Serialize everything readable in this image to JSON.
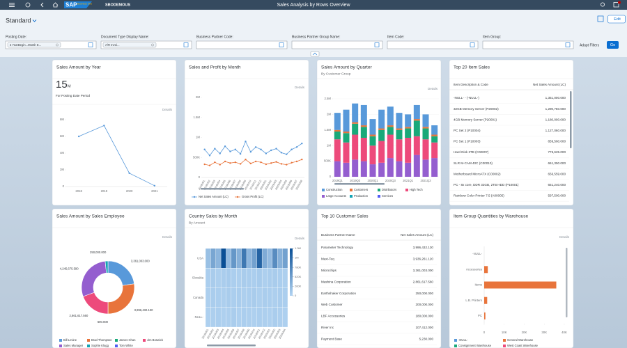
{
  "shell": {
    "logo": "SAP",
    "logo_sub": "Business One",
    "company": "SBODEMOUS",
    "title": "Sales Analysis by Rows Overview"
  },
  "variant": "Standard",
  "actions": {
    "edit": "Edit",
    "adapt": "Adapt Filters",
    "go": "Go"
  },
  "filters": [
    {
      "label": "Posting Date:",
      "value": "3 YearBegin...Month E..."
    },
    {
      "label": "Document Type Display Name:",
      "value": "A/R Invoi..."
    },
    {
      "label": "Business Partner Code:"
    },
    {
      "label": "Business Partner Group Name:"
    },
    {
      "label": "Item Code:"
    },
    {
      "label": "Item Group:"
    }
  ],
  "chart_data": [
    {
      "type": "line",
      "title": "Sales Amount by Year",
      "kpi": 15,
      "kpi_unit": "M",
      "kpi_caption": "For Posting Date Period",
      "details": "Details",
      "categories": [
        "2018",
        "2019",
        "2020",
        "2021"
      ],
      "values": [
        6000000,
        7300000,
        1600000,
        100000
      ],
      "color": "#5899da",
      "markers": true,
      "ylim": [
        0,
        8000000
      ],
      "yticks": [
        0,
        {
          "value": 2000000,
          "label": "2M"
        },
        {
          "value": 4000000,
          "label": "4M"
        },
        {
          "value": 6000000,
          "label": "6M"
        },
        {
          "value": 8000000,
          "label": "8M"
        }
      ]
    },
    {
      "type": "line",
      "title": "Sales and Profit by Month",
      "details": "Details",
      "categories": [
        "2019M01",
        "2019M02",
        "2019M03",
        "2019M04",
        "2019M05",
        "2019M06",
        "2019M07",
        "2019M08",
        "2019M09",
        "2019M10",
        "2019M11",
        "2019M12",
        "2020M01",
        "2020M02",
        "2020M03",
        "2020M04",
        "2020M05",
        "2020M06",
        "2020M07",
        "2020M08"
      ],
      "series": [
        {
          "name": "Net Sales Amount (LC)",
          "color": "#5899da",
          "values": [
            700000,
            550000,
            720000,
            600000,
            780000,
            650000,
            700000,
            590000,
            900000,
            640000,
            760000,
            700000,
            600000,
            680000,
            720000,
            620000,
            580000,
            700000,
            760000,
            850000
          ]
        },
        {
          "name": "Gross Profit (LC)",
          "color": "#e8743b",
          "values": [
            330000,
            300000,
            380000,
            320000,
            400000,
            360000,
            380000,
            340000,
            450000,
            350000,
            400000,
            380000,
            330000,
            360000,
            390000,
            340000,
            320000,
            370000,
            400000,
            450000
          ]
        }
      ],
      "markers": true,
      "ylim": [
        0,
        2000000
      ],
      "yticks": [
        0,
        {
          "value": 500000,
          "label": "500K"
        },
        {
          "value": 1000000,
          "label": "1M"
        },
        {
          "value": 1500000,
          "label": "1.5M"
        },
        {
          "value": 2000000,
          "label": "2M"
        }
      ]
    },
    {
      "type": "stacked_bar",
      "title": "Sales Amount by Quarter",
      "subtitle": "By Customer Group",
      "details": "Details",
      "categories": [
        "2019Q1",
        null,
        "2019Q3",
        null,
        "2020Q1",
        null,
        "2020Q3",
        null,
        "2021Q1",
        null,
        "2021Q3",
        null
      ],
      "series": [
        {
          "name": "Construction",
          "color": "#5899da",
          "values": [
            550000,
            700000,
            600000,
            650000,
            500000,
            600000,
            600000,
            500000,
            400000,
            450000,
            400000,
            300000
          ]
        },
        {
          "name": "Customers",
          "color": "#e8743b",
          "values": [
            50000,
            50000,
            50000,
            50000,
            50000,
            50000,
            50000,
            50000,
            50000,
            50000,
            50000,
            50000
          ]
        },
        {
          "name": "Distributors",
          "color": "#19a979",
          "values": [
            250000,
            300000,
            350000,
            350000,
            300000,
            350000,
            250000,
            300000,
            300000,
            500000,
            350000,
            200000
          ]
        },
        {
          "name": "High Tech",
          "color": "#ed4a7b",
          "values": [
            700000,
            650000,
            800000,
            750000,
            600000,
            700000,
            750000,
            700000,
            800000,
            600000,
            650000,
            500000
          ]
        },
        {
          "name": "Large Accounts",
          "color": "#945ecf",
          "values": [
            500000,
            450000,
            550000,
            500000,
            400000,
            450000,
            600000,
            500000,
            450000,
            700000,
            550000,
            600000
          ]
        },
        {
          "name": "Production",
          "color": "#13a4b4",
          "values": [
            0,
            0,
            0,
            0,
            0,
            0,
            0,
            0,
            0,
            0,
            0,
            0
          ]
        },
        {
          "name": "Services",
          "color": "#525df4",
          "values": [
            0,
            0,
            0,
            0,
            0,
            0,
            0,
            0,
            0,
            0,
            0,
            0
          ]
        }
      ],
      "ylim": [
        0,
        2700000
      ],
      "yticks": [
        0,
        {
          "value": 500000,
          "label": "500K"
        },
        {
          "value": 1000000,
          "label": "1M"
        },
        {
          "value": 1500000,
          "label": "1.5M"
        },
        {
          "value": 2000000,
          "label": "2M"
        },
        {
          "value": 2500000,
          "label": "2.5M"
        }
      ]
    },
    {
      "type": "donut",
      "title": "Sales Amount by Sales Employee",
      "details": "Details",
      "categories": [
        "Bill Levine",
        "Brad Thompson",
        "James Chan",
        "Jim Boswick",
        "Sales Manager",
        "Sophie Klogg",
        "Tom White"
      ],
      "values": [
        3361003,
        3996432.13,
        600,
        2861617.56,
        4245675.59,
        250000,
        null
      ],
      "value_labels": [
        "3,361,003.000",
        "3,996,432.130",
        "600.000",
        "2,861,617.560",
        "4,245,675.590",
        "250,000.000",
        null
      ],
      "colors": [
        "#5899da",
        "#e8743b",
        "#19a979",
        "#ed4a7b",
        "#945ecf",
        "#13a4b4",
        "#525df4"
      ]
    },
    {
      "type": "heatmap",
      "title": "Country Sales by Month",
      "subtitle": "By Amount",
      "details": "Details",
      "categories": [
        "2019M01",
        "2019M02",
        "2019M03",
        "2019M04",
        "2019M05",
        "2019M06",
        "2019M07",
        "2019M08",
        "2019M09",
        "2019M10",
        "2019M11",
        "2019M12",
        "2020M01",
        "2020M02",
        "2020M03",
        "2020M04"
      ],
      "series": [
        {
          "name": "USA",
          "values": [
            200000,
            450000,
            300000,
            1300000,
            250000,
            600000,
            350000,
            900000,
            300000,
            500000,
            1100000,
            400000,
            250000,
            700000,
            350000,
            500000
          ]
        },
        {
          "name": "Slovakia",
          "values": [
            60000,
            80000,
            50000,
            70000,
            90000,
            60000,
            50000,
            80000,
            70000,
            60000,
            90000,
            50000,
            70000,
            80000,
            60000,
            50000
          ]
        },
        {
          "name": "Canada",
          "values": [
            50000,
            70000,
            60000,
            50000,
            80000,
            60000,
            70000,
            50000,
            60000,
            80000,
            50000,
            70000,
            60000,
            50000,
            70000,
            60000
          ]
        },
        {
          "name": "-NULL-",
          "values": [
            40000,
            50000,
            60000,
            40000,
            50000,
            70000,
            40000,
            60000,
            50000,
            40000,
            60000,
            50000,
            40000,
            70000,
            50000,
            40000
          ]
        }
      ],
      "colors": [
        "#b3d4f2",
        "#0a4f96"
      ],
      "zlim": [
        0,
        1300000
      ],
      "zticks": [
        {
          "value": 1300000,
          "label": "1.3M"
        },
        {
          "value": 1040000,
          "label": "1M"
        },
        {
          "value": 780000,
          "label": "780K"
        },
        {
          "value": 520000,
          "label": "520K"
        },
        {
          "value": 260000,
          "label": "260K"
        },
        0
      ]
    },
    {
      "type": "hbar",
      "title": "Item Group Quantities by Warehouse",
      "details": "Details",
      "categories": [
        "-NULL-",
        "Accessories",
        "Items",
        "L.B. Printers",
        "PC"
      ],
      "series": [
        {
          "name": "-NULL-",
          "color": "#5899da",
          "values": [
            0,
            0,
            0,
            0,
            0
          ]
        },
        {
          "name": "General Warehouse",
          "color": "#e8743b",
          "values": [
            0,
            1800,
            36000,
            1500,
            600
          ]
        },
        {
          "name": "Consignment Warehouse",
          "color": "#19a979",
          "values": [
            0,
            0,
            0,
            0,
            0
          ]
        },
        {
          "name": "West Coast Warehouse",
          "color": "#ed4a7b",
          "values": [
            0,
            0,
            0,
            0,
            0
          ]
        }
      ],
      "xlim": [
        0,
        40000
      ],
      "xticks": [
        0,
        {
          "value": 10000,
          "label": "10K"
        },
        {
          "value": 20000,
          "label": "20K"
        },
        {
          "value": 30000,
          "label": "30K"
        },
        {
          "value": 40000,
          "label": "40K"
        }
      ]
    }
  ],
  "tables": [
    {
      "title": "Top 20 Item Sales",
      "columns": [
        "Item Description & Code",
        "Net Sales Amount (LC)"
      ],
      "rows": [
        [
          "-NULL- - (-NULL-)",
          "1,351,000.000"
        ],
        [
          "32GB Memory Server (P20002)",
          "1,290,750.000"
        ],
        [
          "4GB Memory Server (P20001)",
          "1,180,000.000"
        ],
        [
          "PC Set 2 (P10004)",
          "1,127,060.000"
        ],
        [
          "PC Set 1 (P10003)",
          "859,560.000"
        ],
        [
          "Hard Disk 3TB (C00007)",
          "775,625.000"
        ],
        [
          "SLR M-CAM 40C (C00010)",
          "661,350.000"
        ],
        [
          "Motherboard MicroATX (C00002)",
          "656,559.000"
        ],
        [
          "PC - 8x core, DDR 32GB, 2TB HDD (P10001)",
          "651,240.000"
        ],
        [
          "Rainbow Color Printer 7.5 (A00005)",
          "597,500.000"
        ]
      ]
    },
    {
      "title": "Top 10 Customer Sales",
      "columns": [
        "Business Partner Name",
        "Net Sales Amount (LC)"
      ],
      "rows": [
        [
          "Parameter Technology",
          "3,996,432.130"
        ],
        [
          "Maxi-Teq",
          "3,936,261.120"
        ],
        [
          "Microchips",
          "3,361,003.000"
        ],
        [
          "Mashina Corporation",
          "2,861,617.560"
        ],
        [
          "Earthshaker Corporation",
          "250,000.000"
        ],
        [
          "Web Customer",
          "200,000.000"
        ],
        [
          "LBF Accessories",
          "180,000.000"
        ],
        [
          "River Inc",
          "107,412.000"
        ],
        [
          "Payment Base",
          "5,230.000"
        ]
      ]
    }
  ]
}
